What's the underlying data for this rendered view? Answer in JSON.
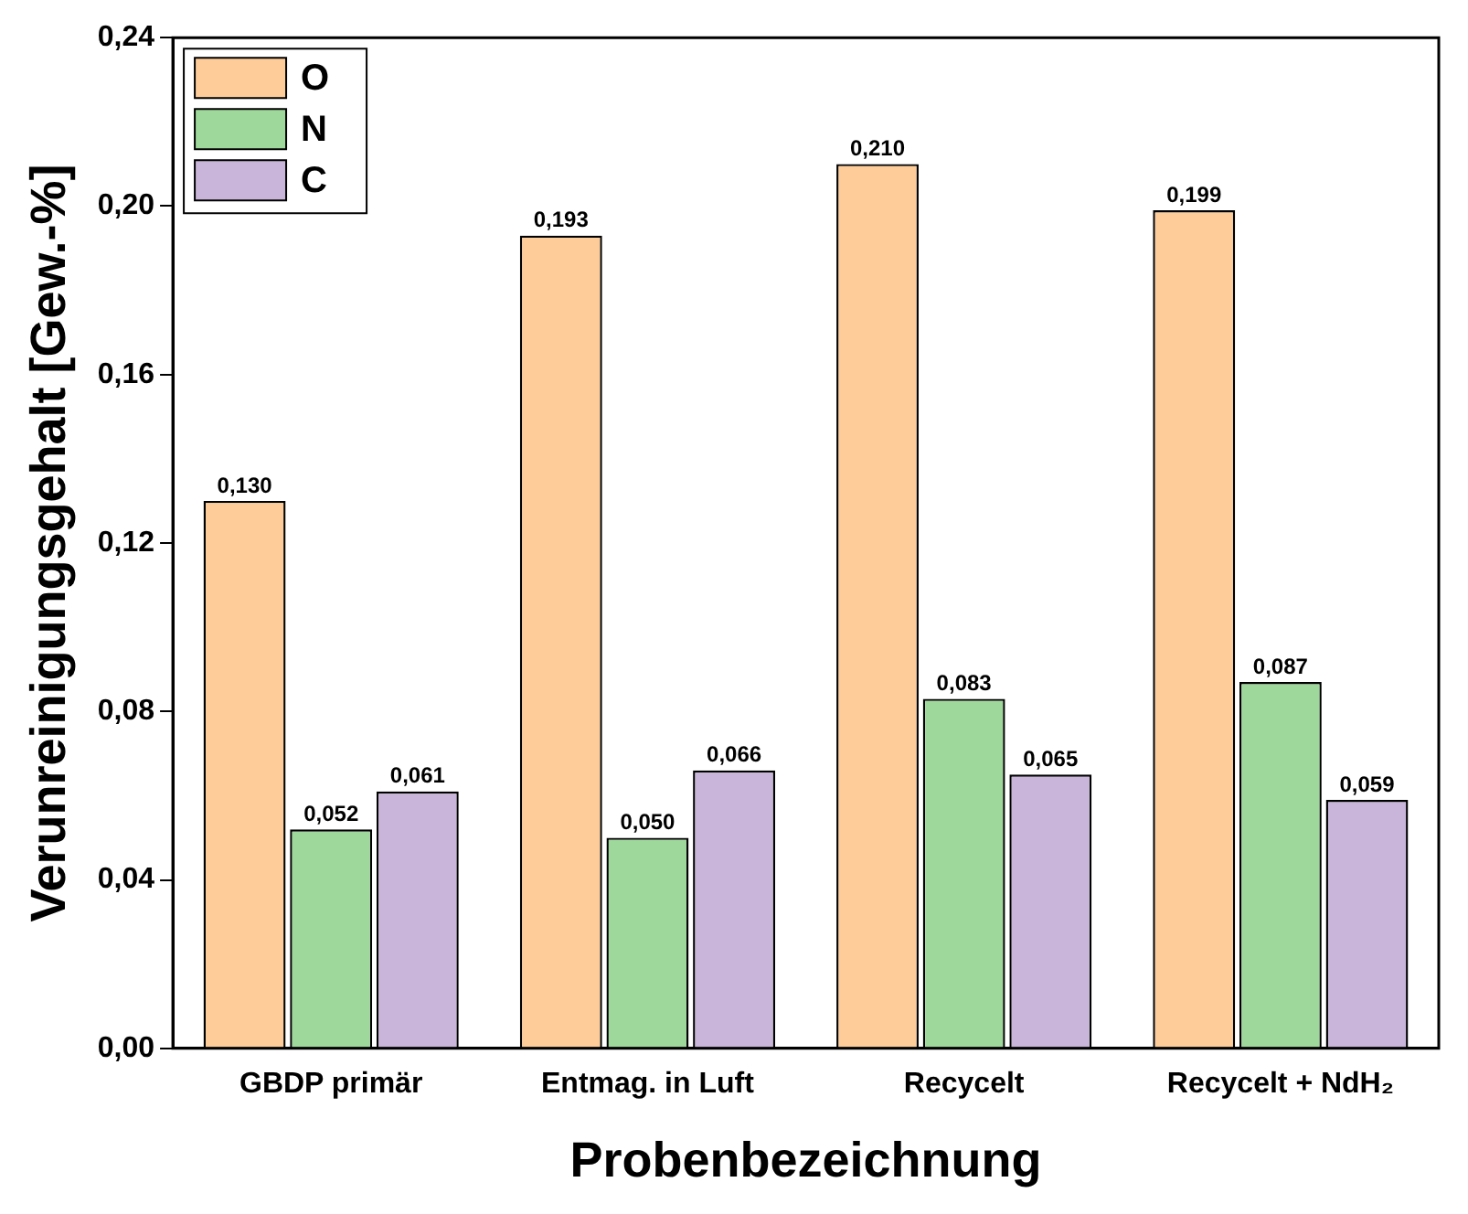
{
  "chart_data": {
    "type": "bar",
    "xlabel": "Probenbezeichnung",
    "ylabel": "Verunreinigungsgehalt [Gew.-%]",
    "categories": [
      "GBDP primär",
      "Entmag. in Luft",
      "Recycelt",
      "Recycelt + NdH₂"
    ],
    "series": [
      {
        "name": "O",
        "color": "#fecc99",
        "values": [
          0.13,
          0.193,
          0.21,
          0.199
        ],
        "value_labels": [
          "0,130",
          "0,193",
          "0,210",
          "0,199"
        ]
      },
      {
        "name": "N",
        "color": "#9ed89a",
        "values": [
          0.052,
          0.05,
          0.083,
          0.087
        ],
        "value_labels": [
          "0,052",
          "0,050",
          "0,083",
          "0,087"
        ]
      },
      {
        "name": "C",
        "color": "#c8b5d9",
        "values": [
          0.061,
          0.066,
          0.065,
          0.059
        ],
        "value_labels": [
          "0,061",
          "0,066",
          "0,065",
          "0,059"
        ]
      }
    ],
    "ylim": [
      0,
      0.24
    ],
    "yticks": [
      {
        "value": 0,
        "label": "0,00"
      },
      {
        "value": 0.04,
        "label": "0,04"
      },
      {
        "value": 0.08,
        "label": "0,08"
      },
      {
        "value": 0.12,
        "label": "0,12"
      },
      {
        "value": 0.16,
        "label": "0,16"
      },
      {
        "value": 0.2,
        "label": "0,20"
      },
      {
        "value": 0.24,
        "label": "0,24"
      }
    ],
    "grid": false,
    "legend": "top left"
  }
}
